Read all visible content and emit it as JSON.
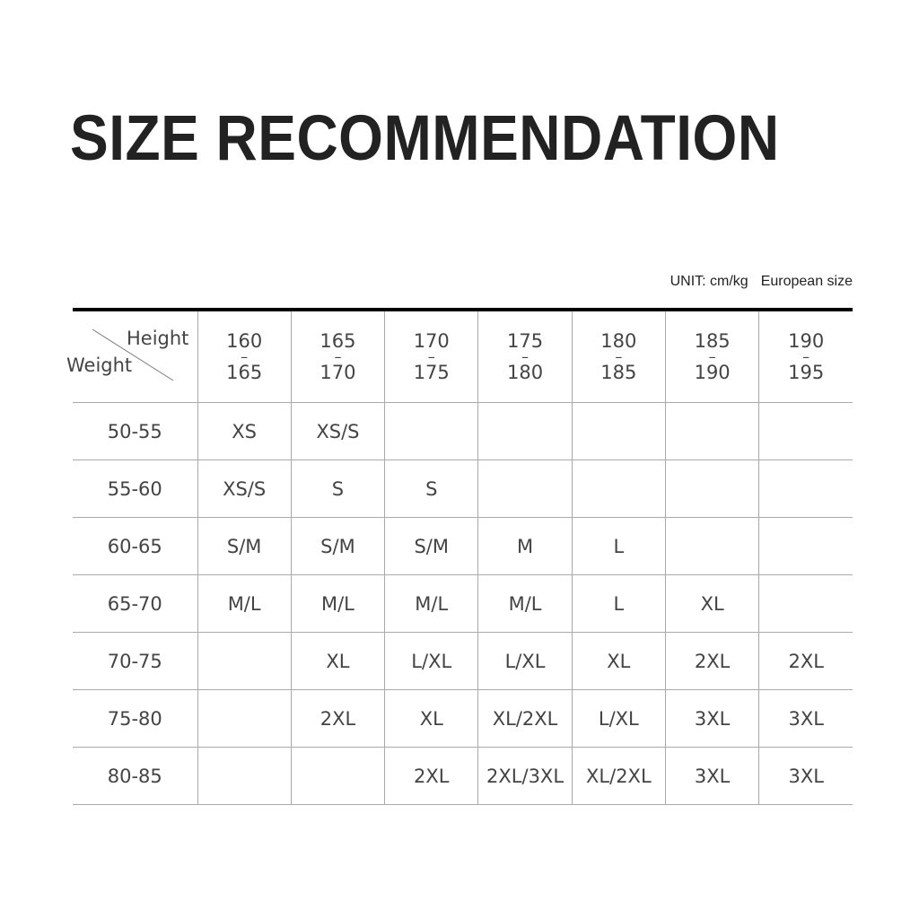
{
  "title": "SIZE RECOMMENDATION",
  "unit_label": "UNIT: cm/kg",
  "size_system": "European size",
  "corner": {
    "column_axis": "Height",
    "row_axis": "Weight"
  },
  "height_ranges": [
    {
      "from": "160",
      "to": "165"
    },
    {
      "from": "165",
      "to": "170"
    },
    {
      "from": "170",
      "to": "175"
    },
    {
      "from": "175",
      "to": "180"
    },
    {
      "from": "180",
      "to": "185"
    },
    {
      "from": "185",
      "to": "190"
    },
    {
      "from": "190",
      "to": "195"
    }
  ],
  "rows": [
    {
      "weight": "50-55",
      "sizes": [
        "XS",
        "XS/S",
        "",
        "",
        "",
        "",
        ""
      ]
    },
    {
      "weight": "55-60",
      "sizes": [
        "XS/S",
        "S",
        "S",
        "",
        "",
        "",
        ""
      ]
    },
    {
      "weight": "60-65",
      "sizes": [
        "S/M",
        "S/M",
        "S/M",
        "M",
        "L",
        "",
        ""
      ]
    },
    {
      "weight": "65-70",
      "sizes": [
        "M/L",
        "M/L",
        "M/L",
        "M/L",
        "L",
        "XL",
        ""
      ]
    },
    {
      "weight": "70-75",
      "sizes": [
        "",
        "XL",
        "L/XL",
        "L/XL",
        "XL",
        "2XL",
        "2XL"
      ]
    },
    {
      "weight": "75-80",
      "sizes": [
        "",
        "2XL",
        "XL",
        "XL/2XL",
        "L/XL",
        "3XL",
        "3XL"
      ]
    },
    {
      "weight": "80-85",
      "sizes": [
        "",
        "",
        "2XL",
        "2XL/3XL",
        "XL/2XL",
        "3XL",
        "3XL"
      ]
    }
  ]
}
